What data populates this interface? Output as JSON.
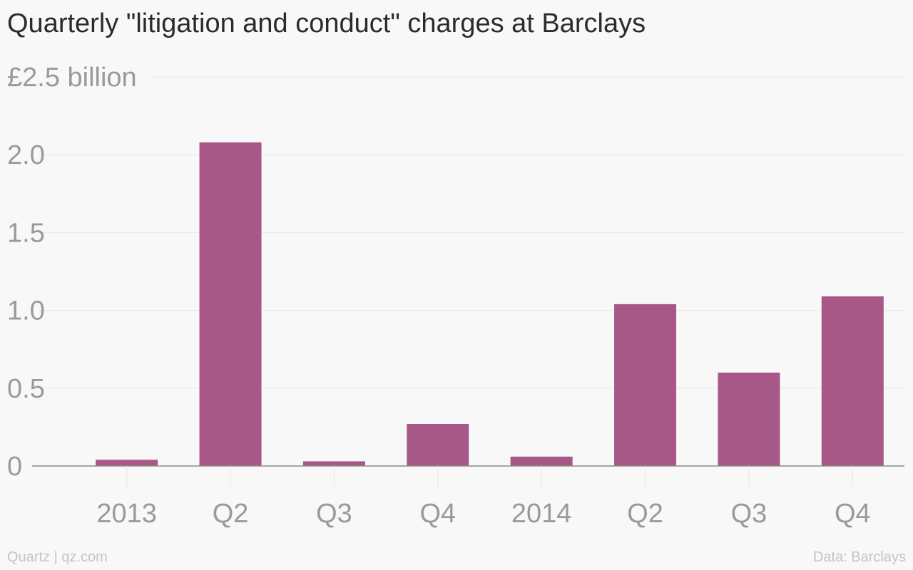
{
  "title": "Quarterly \"litigation and conduct\" charges at Barclays",
  "footer": {
    "credit": "Quartz | qz.com",
    "source": "Data: Barclays"
  },
  "colors": {
    "bar": "#a85886",
    "grid": "#e6e6e6",
    "axis": "#8a8a8a",
    "tick_text": "#9a9a9a",
    "background": "#f8f8f8"
  },
  "chart_data": {
    "type": "bar",
    "categories": [
      "2013",
      "Q2",
      "Q3",
      "Q4",
      "2014",
      "Q2",
      "Q3",
      "Q4"
    ],
    "values": [
      0.04,
      2.08,
      0.03,
      0.27,
      0.06,
      1.04,
      0.6,
      1.09
    ],
    "unit_label": "£2.5 billion",
    "yticks": [
      0,
      0.5,
      1.0,
      1.5,
      2.0,
      2.5
    ],
    "ytick_labels": [
      "0",
      "0.5",
      "1.0",
      "1.5",
      "2.0",
      "£2.5 billion"
    ],
    "ylim": [
      0,
      2.5
    ],
    "grid": true,
    "xlabel": "",
    "ylabel": ""
  }
}
